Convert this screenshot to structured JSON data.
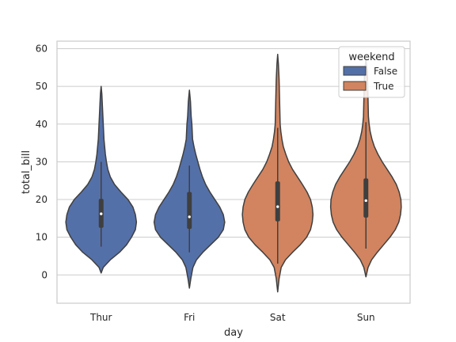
{
  "chart_data": {
    "type": "violin",
    "x_label": "day",
    "y_label": "total_bill",
    "categories": [
      "Thur",
      "Fri",
      "Sat",
      "Sun"
    ],
    "y_ticks": [
      0,
      10,
      20,
      30,
      40,
      50,
      60
    ],
    "ylim": [
      -7.5,
      62
    ],
    "grid": true,
    "legend": {
      "title": "weekend",
      "position": "top-right",
      "entries": [
        {
          "label": "False",
          "color": "#5470a8"
        },
        {
          "label": "True",
          "color": "#d1845f"
        }
      ]
    },
    "series": [
      {
        "category": "Thur",
        "weekend": "False",
        "color": "#5470a8",
        "range": [
          0.5,
          50
        ],
        "box": [
          12.5,
          20.2
        ],
        "whisker": [
          7.5,
          30
        ],
        "median": 16.2,
        "profile": [
          [
            0.5,
            0
          ],
          [
            2,
            0.06
          ],
          [
            4,
            0.26
          ],
          [
            6,
            0.52
          ],
          [
            8,
            0.72
          ],
          [
            10,
            0.86
          ],
          [
            12,
            0.97
          ],
          [
            14,
            1.0
          ],
          [
            16,
            0.97
          ],
          [
            18,
            0.9
          ],
          [
            20,
            0.76
          ],
          [
            22,
            0.56
          ],
          [
            24,
            0.38
          ],
          [
            26,
            0.26
          ],
          [
            28,
            0.19
          ],
          [
            30,
            0.15
          ],
          [
            32,
            0.12
          ],
          [
            34,
            0.1
          ],
          [
            36,
            0.08
          ],
          [
            38,
            0.07
          ],
          [
            40,
            0.06
          ],
          [
            42,
            0.05
          ],
          [
            44,
            0.04
          ],
          [
            46,
            0.03
          ],
          [
            48,
            0.02
          ],
          [
            50,
            0
          ]
        ]
      },
      {
        "category": "Fri",
        "weekend": "False",
        "color": "#5470a8",
        "range": [
          -3.5,
          49
        ],
        "box": [
          12.2,
          22
        ],
        "whisker": [
          6,
          29
        ],
        "median": 15.4,
        "profile": [
          [
            -3.5,
            0
          ],
          [
            -1,
            0.04
          ],
          [
            2,
            0.1
          ],
          [
            4,
            0.2
          ],
          [
            6,
            0.38
          ],
          [
            8,
            0.6
          ],
          [
            10,
            0.82
          ],
          [
            12,
            0.96
          ],
          [
            14,
            1.0
          ],
          [
            16,
            0.96
          ],
          [
            18,
            0.86
          ],
          [
            20,
            0.72
          ],
          [
            22,
            0.58
          ],
          [
            24,
            0.46
          ],
          [
            26,
            0.37
          ],
          [
            28,
            0.3
          ],
          [
            30,
            0.24
          ],
          [
            32,
            0.18
          ],
          [
            34,
            0.13
          ],
          [
            36,
            0.09
          ],
          [
            38,
            0.08
          ],
          [
            40,
            0.07
          ],
          [
            42,
            0.05
          ],
          [
            44,
            0.04
          ],
          [
            46,
            0.03
          ],
          [
            49,
            0
          ]
        ]
      },
      {
        "category": "Sat",
        "weekend": "True",
        "color": "#d1845f",
        "range": [
          -4.5,
          58.5
        ],
        "box": [
          14.2,
          24.8
        ],
        "whisker": [
          3,
          39
        ],
        "median": 18.1,
        "profile": [
          [
            -4.5,
            0
          ],
          [
            -1,
            0.04
          ],
          [
            2,
            0.1
          ],
          [
            4,
            0.22
          ],
          [
            6,
            0.42
          ],
          [
            8,
            0.64
          ],
          [
            10,
            0.82
          ],
          [
            12,
            0.93
          ],
          [
            14,
            0.98
          ],
          [
            16,
            1.0
          ],
          [
            18,
            0.98
          ],
          [
            20,
            0.93
          ],
          [
            22,
            0.83
          ],
          [
            24,
            0.7
          ],
          [
            26,
            0.56
          ],
          [
            28,
            0.42
          ],
          [
            30,
            0.31
          ],
          [
            32,
            0.23
          ],
          [
            34,
            0.16
          ],
          [
            36,
            0.12
          ],
          [
            38,
            0.09
          ],
          [
            40,
            0.07
          ],
          [
            44,
            0.06
          ],
          [
            48,
            0.05
          ],
          [
            52,
            0.04
          ],
          [
            56,
            0.02
          ],
          [
            58.5,
            0
          ]
        ]
      },
      {
        "category": "Sun",
        "weekend": "True",
        "color": "#d1845f",
        "range": [
          -0.5,
          57
        ],
        "box": [
          15.2,
          25.6
        ],
        "whisker": [
          7,
          40.5
        ],
        "median": 19.7,
        "profile": [
          [
            -0.5,
            0
          ],
          [
            2,
            0.06
          ],
          [
            4,
            0.16
          ],
          [
            6,
            0.32
          ],
          [
            8,
            0.5
          ],
          [
            10,
            0.68
          ],
          [
            12,
            0.83
          ],
          [
            14,
            0.93
          ],
          [
            16,
            0.98
          ],
          [
            18,
            1.0
          ],
          [
            20,
            0.99
          ],
          [
            22,
            0.94
          ],
          [
            24,
            0.86
          ],
          [
            26,
            0.74
          ],
          [
            28,
            0.6
          ],
          [
            30,
            0.46
          ],
          [
            32,
            0.34
          ],
          [
            34,
            0.24
          ],
          [
            36,
            0.17
          ],
          [
            38,
            0.12
          ],
          [
            40,
            0.09
          ],
          [
            42,
            0.07
          ],
          [
            46,
            0.06
          ],
          [
            50,
            0.05
          ],
          [
            54,
            0.04
          ],
          [
            57,
            0
          ]
        ]
      }
    ]
  }
}
